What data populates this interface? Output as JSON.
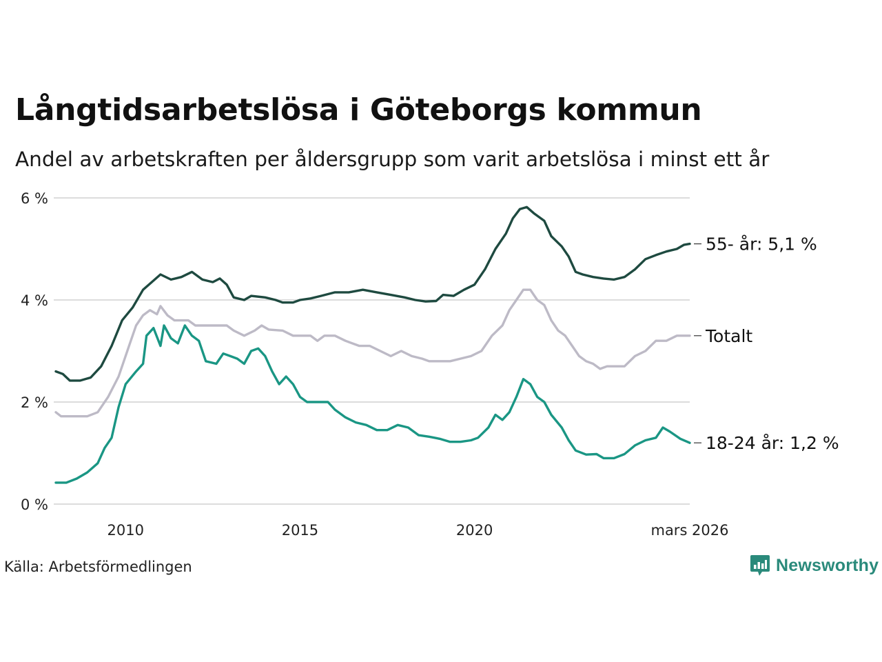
{
  "title": "Långtidsarbetslösa i Göteborgs kommun",
  "subtitle": "Andel av arbetskraften per åldersgrupp som varit arbetslösa i minst ett år",
  "source": "Källa: Arbetsförmedlingen",
  "brand": "Newsworthy",
  "chart_data": {
    "type": "line",
    "title": "Långtidsarbetslösa i Göteborgs kommun",
    "xlabel": "",
    "ylabel": "",
    "xlim": [
      2008.0,
      2026.17
    ],
    "ylim": [
      0,
      6
    ],
    "y_ticks": [
      {
        "value": 0,
        "label": "0 %"
      },
      {
        "value": 2,
        "label": "2 %"
      },
      {
        "value": 4,
        "label": "4 %"
      },
      {
        "value": 6,
        "label": "6 %"
      }
    ],
    "x_ticks": [
      {
        "value": 2010,
        "label": "2010"
      },
      {
        "value": 2015,
        "label": "2015"
      },
      {
        "value": 2020,
        "label": "2020"
      },
      {
        "value": 2026.17,
        "label": "mars 2026"
      }
    ],
    "grid": true,
    "legend": "direct labels at line ends",
    "series": [
      {
        "name": "55- år",
        "end_label": "55- år: 5,1 %",
        "color": "#1e4a40",
        "points": [
          [
            2008.0,
            2.6
          ],
          [
            2008.2,
            2.55
          ],
          [
            2008.4,
            2.42
          ],
          [
            2008.7,
            2.42
          ],
          [
            2009.0,
            2.48
          ],
          [
            2009.3,
            2.7
          ],
          [
            2009.6,
            3.1
          ],
          [
            2009.9,
            3.6
          ],
          [
            2010.2,
            3.85
          ],
          [
            2010.5,
            4.2
          ],
          [
            2010.8,
            4.38
          ],
          [
            2011.0,
            4.5
          ],
          [
            2011.3,
            4.4
          ],
          [
            2011.6,
            4.45
          ],
          [
            2011.9,
            4.55
          ],
          [
            2012.2,
            4.4
          ],
          [
            2012.5,
            4.35
          ],
          [
            2012.7,
            4.42
          ],
          [
            2012.9,
            4.3
          ],
          [
            2013.1,
            4.05
          ],
          [
            2013.4,
            4.0
          ],
          [
            2013.6,
            4.08
          ],
          [
            2014.0,
            4.05
          ],
          [
            2014.3,
            4.0
          ],
          [
            2014.5,
            3.95
          ],
          [
            2014.8,
            3.95
          ],
          [
            2015.0,
            4.0
          ],
          [
            2015.3,
            4.03
          ],
          [
            2015.6,
            4.08
          ],
          [
            2016.0,
            4.15
          ],
          [
            2016.4,
            4.15
          ],
          [
            2016.8,
            4.2
          ],
          [
            2017.2,
            4.15
          ],
          [
            2017.6,
            4.1
          ],
          [
            2018.0,
            4.05
          ],
          [
            2018.3,
            4.0
          ],
          [
            2018.6,
            3.97
          ],
          [
            2018.9,
            3.98
          ],
          [
            2019.1,
            4.1
          ],
          [
            2019.4,
            4.08
          ],
          [
            2019.7,
            4.2
          ],
          [
            2020.0,
            4.3
          ],
          [
            2020.3,
            4.6
          ],
          [
            2020.6,
            5.0
          ],
          [
            2020.9,
            5.3
          ],
          [
            2021.1,
            5.6
          ],
          [
            2021.3,
            5.78
          ],
          [
            2021.5,
            5.82
          ],
          [
            2021.7,
            5.7
          ],
          [
            2022.0,
            5.55
          ],
          [
            2022.2,
            5.25
          ],
          [
            2022.5,
            5.05
          ],
          [
            2022.7,
            4.85
          ],
          [
            2022.9,
            4.55
          ],
          [
            2023.1,
            4.5
          ],
          [
            2023.4,
            4.45
          ],
          [
            2023.7,
            4.42
          ],
          [
            2024.0,
            4.4
          ],
          [
            2024.3,
            4.45
          ],
          [
            2024.6,
            4.6
          ],
          [
            2024.9,
            4.8
          ],
          [
            2025.2,
            4.88
          ],
          [
            2025.5,
            4.95
          ],
          [
            2025.8,
            5.0
          ],
          [
            2026.0,
            5.08
          ],
          [
            2026.17,
            5.1
          ]
        ]
      },
      {
        "name": "Totalt",
        "end_label": "Totalt",
        "color": "#bdbac6",
        "points": [
          [
            2008.0,
            1.8
          ],
          [
            2008.15,
            1.72
          ],
          [
            2008.5,
            1.72
          ],
          [
            2008.9,
            1.72
          ],
          [
            2009.2,
            1.8
          ],
          [
            2009.5,
            2.1
          ],
          [
            2009.8,
            2.5
          ],
          [
            2010.1,
            3.1
          ],
          [
            2010.3,
            3.5
          ],
          [
            2010.5,
            3.7
          ],
          [
            2010.7,
            3.8
          ],
          [
            2010.9,
            3.72
          ],
          [
            2011.0,
            3.88
          ],
          [
            2011.2,
            3.7
          ],
          [
            2011.4,
            3.6
          ],
          [
            2011.8,
            3.6
          ],
          [
            2012.0,
            3.5
          ],
          [
            2012.5,
            3.5
          ],
          [
            2012.9,
            3.5
          ],
          [
            2013.1,
            3.4
          ],
          [
            2013.4,
            3.3
          ],
          [
            2013.7,
            3.4
          ],
          [
            2013.9,
            3.5
          ],
          [
            2014.1,
            3.42
          ],
          [
            2014.5,
            3.4
          ],
          [
            2014.8,
            3.3
          ],
          [
            2015.0,
            3.3
          ],
          [
            2015.3,
            3.3
          ],
          [
            2015.5,
            3.2
          ],
          [
            2015.7,
            3.3
          ],
          [
            2016.0,
            3.3
          ],
          [
            2016.3,
            3.2
          ],
          [
            2016.7,
            3.1
          ],
          [
            2017.0,
            3.1
          ],
          [
            2017.3,
            3.0
          ],
          [
            2017.6,
            2.9
          ],
          [
            2017.9,
            3.0
          ],
          [
            2018.2,
            2.9
          ],
          [
            2018.5,
            2.85
          ],
          [
            2018.7,
            2.8
          ],
          [
            2019.0,
            2.8
          ],
          [
            2019.3,
            2.8
          ],
          [
            2019.6,
            2.85
          ],
          [
            2019.9,
            2.9
          ],
          [
            2020.2,
            3.0
          ],
          [
            2020.5,
            3.3
          ],
          [
            2020.8,
            3.5
          ],
          [
            2021.0,
            3.8
          ],
          [
            2021.2,
            4.0
          ],
          [
            2021.4,
            4.2
          ],
          [
            2021.6,
            4.2
          ],
          [
            2021.8,
            4.0
          ],
          [
            2022.0,
            3.9
          ],
          [
            2022.2,
            3.6
          ],
          [
            2022.4,
            3.4
          ],
          [
            2022.6,
            3.3
          ],
          [
            2022.8,
            3.1
          ],
          [
            2023.0,
            2.9
          ],
          [
            2023.2,
            2.8
          ],
          [
            2023.4,
            2.75
          ],
          [
            2023.6,
            2.65
          ],
          [
            2023.8,
            2.7
          ],
          [
            2024.0,
            2.7
          ],
          [
            2024.3,
            2.7
          ],
          [
            2024.6,
            2.9
          ],
          [
            2024.9,
            3.0
          ],
          [
            2025.2,
            3.2
          ],
          [
            2025.5,
            3.2
          ],
          [
            2025.8,
            3.3
          ],
          [
            2026.17,
            3.3
          ]
        ]
      },
      {
        "name": "18-24 år",
        "end_label": "18-24 år: 1,2 %",
        "color": "#1a9684",
        "points": [
          [
            2008.0,
            0.42
          ],
          [
            2008.3,
            0.42
          ],
          [
            2008.6,
            0.5
          ],
          [
            2008.9,
            0.62
          ],
          [
            2009.2,
            0.8
          ],
          [
            2009.4,
            1.1
          ],
          [
            2009.6,
            1.3
          ],
          [
            2009.8,
            1.9
          ],
          [
            2010.0,
            2.35
          ],
          [
            2010.3,
            2.6
          ],
          [
            2010.5,
            2.75
          ],
          [
            2010.6,
            3.3
          ],
          [
            2010.8,
            3.45
          ],
          [
            2011.0,
            3.1
          ],
          [
            2011.1,
            3.5
          ],
          [
            2011.3,
            3.25
          ],
          [
            2011.5,
            3.15
          ],
          [
            2011.7,
            3.5
          ],
          [
            2011.9,
            3.3
          ],
          [
            2012.1,
            3.2
          ],
          [
            2012.3,
            2.8
          ],
          [
            2012.6,
            2.75
          ],
          [
            2012.8,
            2.95
          ],
          [
            2013.0,
            2.9
          ],
          [
            2013.2,
            2.85
          ],
          [
            2013.4,
            2.75
          ],
          [
            2013.6,
            3.0
          ],
          [
            2013.8,
            3.05
          ],
          [
            2014.0,
            2.9
          ],
          [
            2014.2,
            2.6
          ],
          [
            2014.4,
            2.35
          ],
          [
            2014.6,
            2.5
          ],
          [
            2014.8,
            2.35
          ],
          [
            2015.0,
            2.1
          ],
          [
            2015.2,
            2.0
          ],
          [
            2015.5,
            2.0
          ],
          [
            2015.8,
            2.0
          ],
          [
            2016.0,
            1.85
          ],
          [
            2016.3,
            1.7
          ],
          [
            2016.6,
            1.6
          ],
          [
            2016.9,
            1.55
          ],
          [
            2017.2,
            1.45
          ],
          [
            2017.5,
            1.45
          ],
          [
            2017.8,
            1.55
          ],
          [
            2018.1,
            1.5
          ],
          [
            2018.4,
            1.35
          ],
          [
            2018.7,
            1.32
          ],
          [
            2019.0,
            1.28
          ],
          [
            2019.3,
            1.22
          ],
          [
            2019.6,
            1.22
          ],
          [
            2019.9,
            1.25
          ],
          [
            2020.1,
            1.3
          ],
          [
            2020.4,
            1.5
          ],
          [
            2020.6,
            1.75
          ],
          [
            2020.8,
            1.65
          ],
          [
            2021.0,
            1.8
          ],
          [
            2021.2,
            2.1
          ],
          [
            2021.4,
            2.45
          ],
          [
            2021.6,
            2.35
          ],
          [
            2021.8,
            2.1
          ],
          [
            2022.0,
            2.0
          ],
          [
            2022.2,
            1.75
          ],
          [
            2022.5,
            1.5
          ],
          [
            2022.7,
            1.25
          ],
          [
            2022.9,
            1.05
          ],
          [
            2023.2,
            0.97
          ],
          [
            2023.5,
            0.98
          ],
          [
            2023.7,
            0.9
          ],
          [
            2024.0,
            0.9
          ],
          [
            2024.3,
            0.98
          ],
          [
            2024.6,
            1.15
          ],
          [
            2024.9,
            1.25
          ],
          [
            2025.2,
            1.3
          ],
          [
            2025.4,
            1.5
          ],
          [
            2025.6,
            1.42
          ],
          [
            2025.9,
            1.28
          ],
          [
            2026.17,
            1.2
          ]
        ]
      }
    ]
  }
}
